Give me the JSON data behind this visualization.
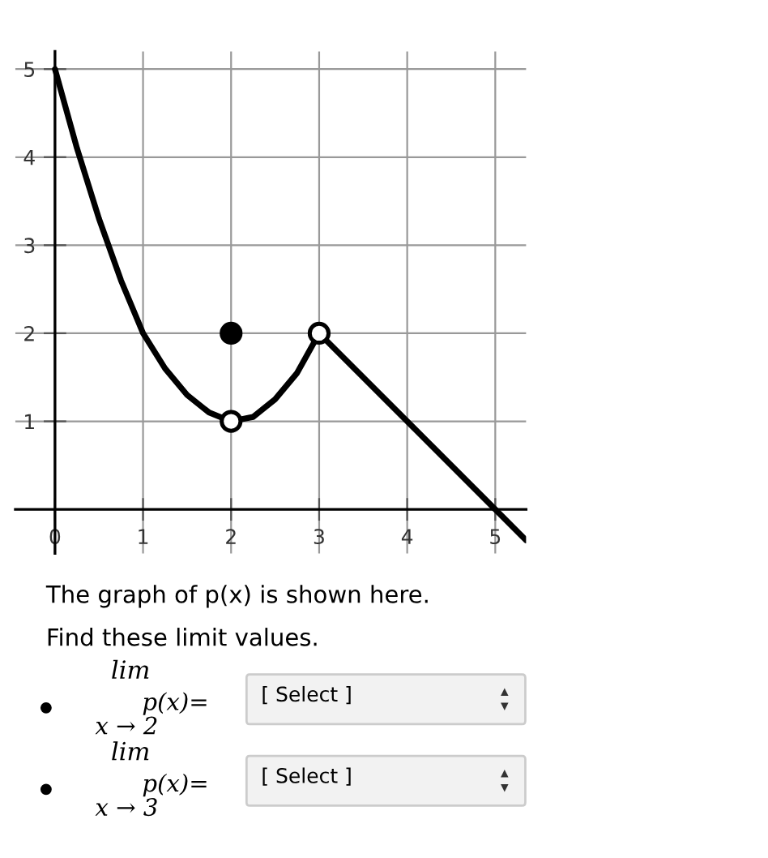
{
  "chart_data": {
    "type": "line",
    "series": [
      {
        "color": "#000000",
        "x": [
          0,
          0.25,
          0.5,
          0.75,
          1,
          1.25,
          1.5,
          1.75,
          2,
          2.25,
          2.5,
          2.75,
          3
        ],
        "values": [
          5,
          4.1,
          3.3,
          2.6,
          2.0,
          1.6,
          1.3,
          1.1,
          1,
          1.05,
          1.25,
          1.55,
          2
        ]
      },
      {
        "color": "#000000",
        "x": [
          3,
          5,
          5.35
        ],
        "values": [
          2,
          0,
          -0.35
        ]
      },
      {
        "type": "scatter",
        "color": "#000000",
        "marker": "circle",
        "x": [
          2
        ],
        "values": [
          2
        ]
      },
      {
        "type": "scatter",
        "color": "#ffffff",
        "marker": "circle",
        "x": [
          2,
          3
        ],
        "values": [
          1,
          2
        ]
      }
    ],
    "xlim": [
      -0.45,
      5.35
    ],
    "ylim": [
      -0.5,
      5.2
    ],
    "xticks": [
      0,
      1,
      2,
      3,
      4,
      5
    ],
    "yticks": [
      1,
      2,
      3,
      4,
      5
    ],
    "grid": true,
    "line_style": "solid",
    "annotations": [
      "The graph of p(x) is shown here.",
      "Find these limit values.",
      "lim",
      "x → 2",
      "p(x)=",
      "[ Select ]",
      "lim",
      "x → 3",
      "p(x)=",
      "[ Select ]"
    ]
  }
}
